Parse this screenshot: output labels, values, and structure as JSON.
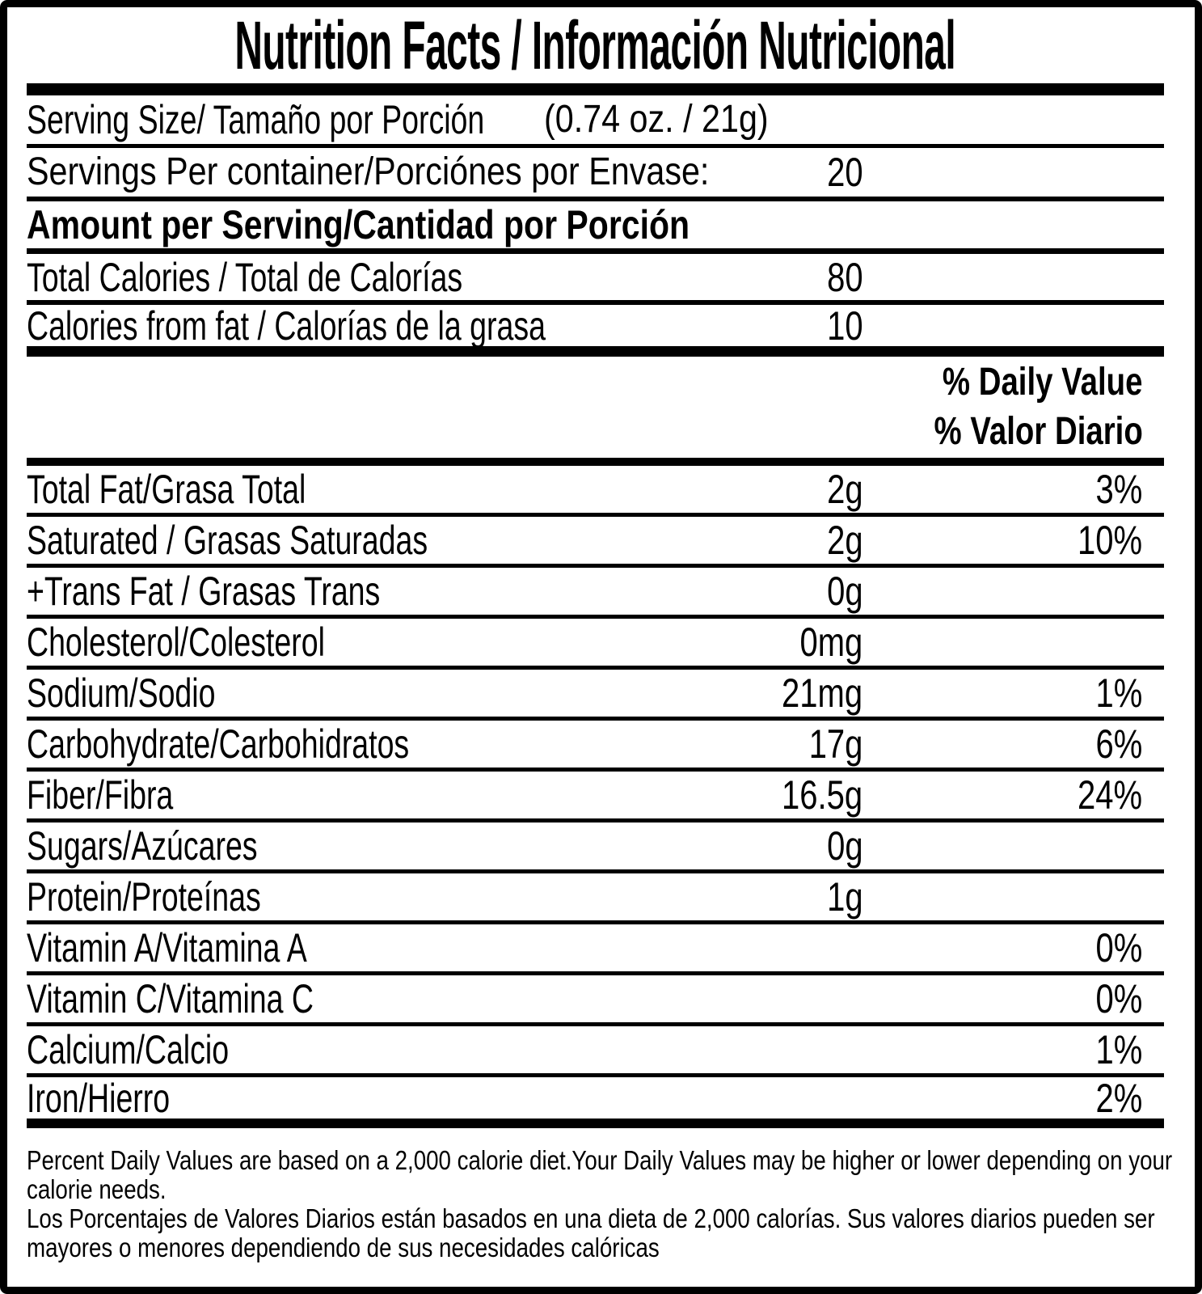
{
  "title": "Nutrition Facts / Información Nutricional",
  "serving": {
    "size_label": "Serving Size/ Tamaño por Porción",
    "size_value": "(0.74 oz. / 21g)",
    "per_container_label": "Servings Per container/Porciónes por Envase:",
    "per_container_value": "20"
  },
  "amount_header": "Amount per Serving/Cantidad por Porción",
  "calories": {
    "total_label": "Total Calories / Total de Calorías",
    "total_value": "80",
    "from_fat_label": "Calories from fat / Calorías de la grasa",
    "from_fat_value": "10"
  },
  "daily_value_header": {
    "en": "% Daily Value",
    "es": "% Valor Diario"
  },
  "nutrients": [
    {
      "label": "Total Fat/Grasa Total",
      "amount": "2g",
      "dv": "3%"
    },
    {
      "label": "Saturated / Grasas Saturadas",
      "amount": "2g",
      "dv": "10%"
    },
    {
      "label": "+Trans Fat / Grasas Trans",
      "amount": "0g",
      "dv": ""
    },
    {
      "label": "Cholesterol/Colesterol",
      "amount": "0mg",
      "dv": ""
    },
    {
      "label": "Sodium/Sodio",
      "amount": "21mg",
      "dv": "1%"
    },
    {
      "label": "Carbohydrate/Carbohidratos",
      "amount": "17g",
      "dv": "6%"
    },
    {
      "label": "Fiber/Fibra",
      "amount": "16.5g",
      "dv": "24%"
    },
    {
      "label": "Sugars/Azúcares",
      "amount": "0g",
      "dv": ""
    },
    {
      "label": "Protein/Proteínas",
      "amount": "1g",
      "dv": ""
    },
    {
      "label": "Vitamin A/Vitamina A",
      "amount": "",
      "dv": "0%"
    },
    {
      "label": "Vitamin C/Vitamina C",
      "amount": "",
      "dv": "0%"
    },
    {
      "label": "Calcium/Calcio",
      "amount": "",
      "dv": "1%"
    },
    {
      "label": "Iron/Hierro",
      "amount": "",
      "dv": "2%"
    }
  ],
  "footnote": {
    "lines": [
      "Percent Daily Values are based on a 2,000 calorie diet.Your Daily Values may be higher or lower depending on your",
      "calorie needs.",
      "Los Porcentajes de Valores Diarios están basados en una dieta de 2,000 calorías. Sus valores diarios pueden ser",
      "mayores o menores dependiendo de sus necesidades calóricas"
    ]
  },
  "colors": {
    "ink": "#000000",
    "background": "#ffffff"
  }
}
